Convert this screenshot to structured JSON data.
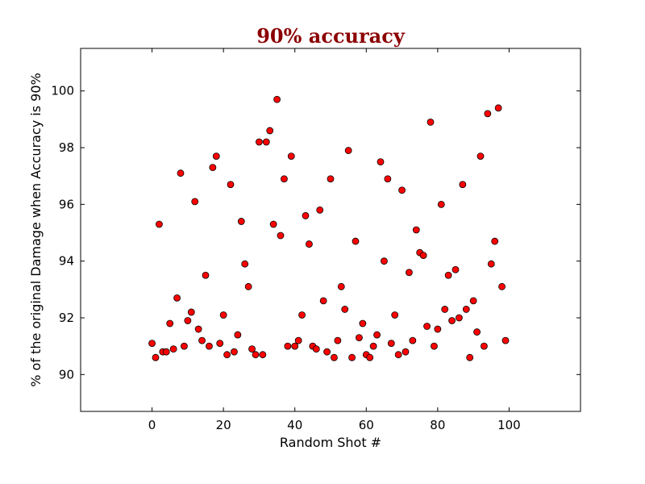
{
  "chart_data": {
    "type": "scatter",
    "title": "90% accuracy",
    "xlabel": "Random Shot #",
    "ylabel": "% of the original Damage when Accuracy is 90%",
    "xlim": [
      -20,
      120
    ],
    "ylim": [
      88.7,
      101.5
    ],
    "xticks": [
      0,
      20,
      40,
      60,
      80,
      100
    ],
    "yticks": [
      90,
      92,
      94,
      96,
      98,
      100
    ],
    "grid": false,
    "colors": {
      "title": "#8b0000",
      "marker_fill": "#ff0000",
      "marker_edge": "#000000"
    },
    "series": [
      {
        "x": [
          0,
          1,
          2,
          3,
          4,
          5,
          6,
          7,
          8,
          9,
          10,
          11,
          12,
          13,
          14,
          15,
          16,
          17,
          18,
          19,
          20,
          21,
          22,
          23,
          24,
          25,
          26,
          27,
          28,
          29,
          30,
          31,
          32,
          33,
          34,
          35,
          36,
          37,
          38,
          39,
          40,
          41,
          42,
          43,
          44,
          45,
          46,
          47,
          48,
          49,
          50,
          51,
          52,
          53,
          54,
          55,
          56,
          57,
          58,
          59,
          60,
          61,
          62,
          63,
          64,
          65,
          66,
          67,
          68,
          69,
          70,
          71,
          72,
          73,
          74,
          75,
          76,
          77,
          78,
          79,
          80,
          81,
          82,
          83,
          84,
          85,
          86,
          87,
          88,
          89,
          90,
          91,
          92,
          93,
          94,
          95,
          96,
          97,
          98,
          99
        ],
        "y": [
          91.1,
          90.6,
          95.3,
          90.8,
          90.8,
          91.8,
          90.9,
          92.7,
          97.1,
          91.0,
          91.9,
          92.2,
          96.1,
          91.6,
          91.2,
          93.5,
          91.0,
          97.3,
          97.7,
          91.1,
          92.1,
          90.7,
          96.7,
          90.8,
          91.4,
          95.4,
          93.9,
          93.1,
          90.9,
          90.7,
          98.2,
          90.7,
          98.2,
          98.6,
          95.3,
          99.7,
          94.9,
          96.9,
          91.0,
          97.7,
          91.0,
          91.2,
          92.1,
          95.6,
          94.6,
          91.0,
          90.9,
          95.8,
          92.6,
          90.8,
          96.9,
          90.6,
          91.2,
          93.1,
          92.3,
          97.9,
          90.6,
          94.7,
          91.3,
          91.8,
          90.7,
          90.6,
          91.0,
          91.4,
          97.5,
          94.0,
          96.9,
          91.1,
          92.1,
          90.7,
          96.5,
          90.8,
          93.6,
          91.2,
          95.1,
          94.3,
          94.2,
          91.7,
          98.9,
          91.0,
          91.6,
          96.0,
          92.3,
          93.5,
          91.9,
          93.7,
          92.0,
          96.7,
          92.3,
          90.6,
          92.6,
          91.5,
          97.7,
          91.0,
          99.2,
          93.9,
          94.7,
          99.4,
          93.1,
          91.2
        ]
      }
    ]
  }
}
